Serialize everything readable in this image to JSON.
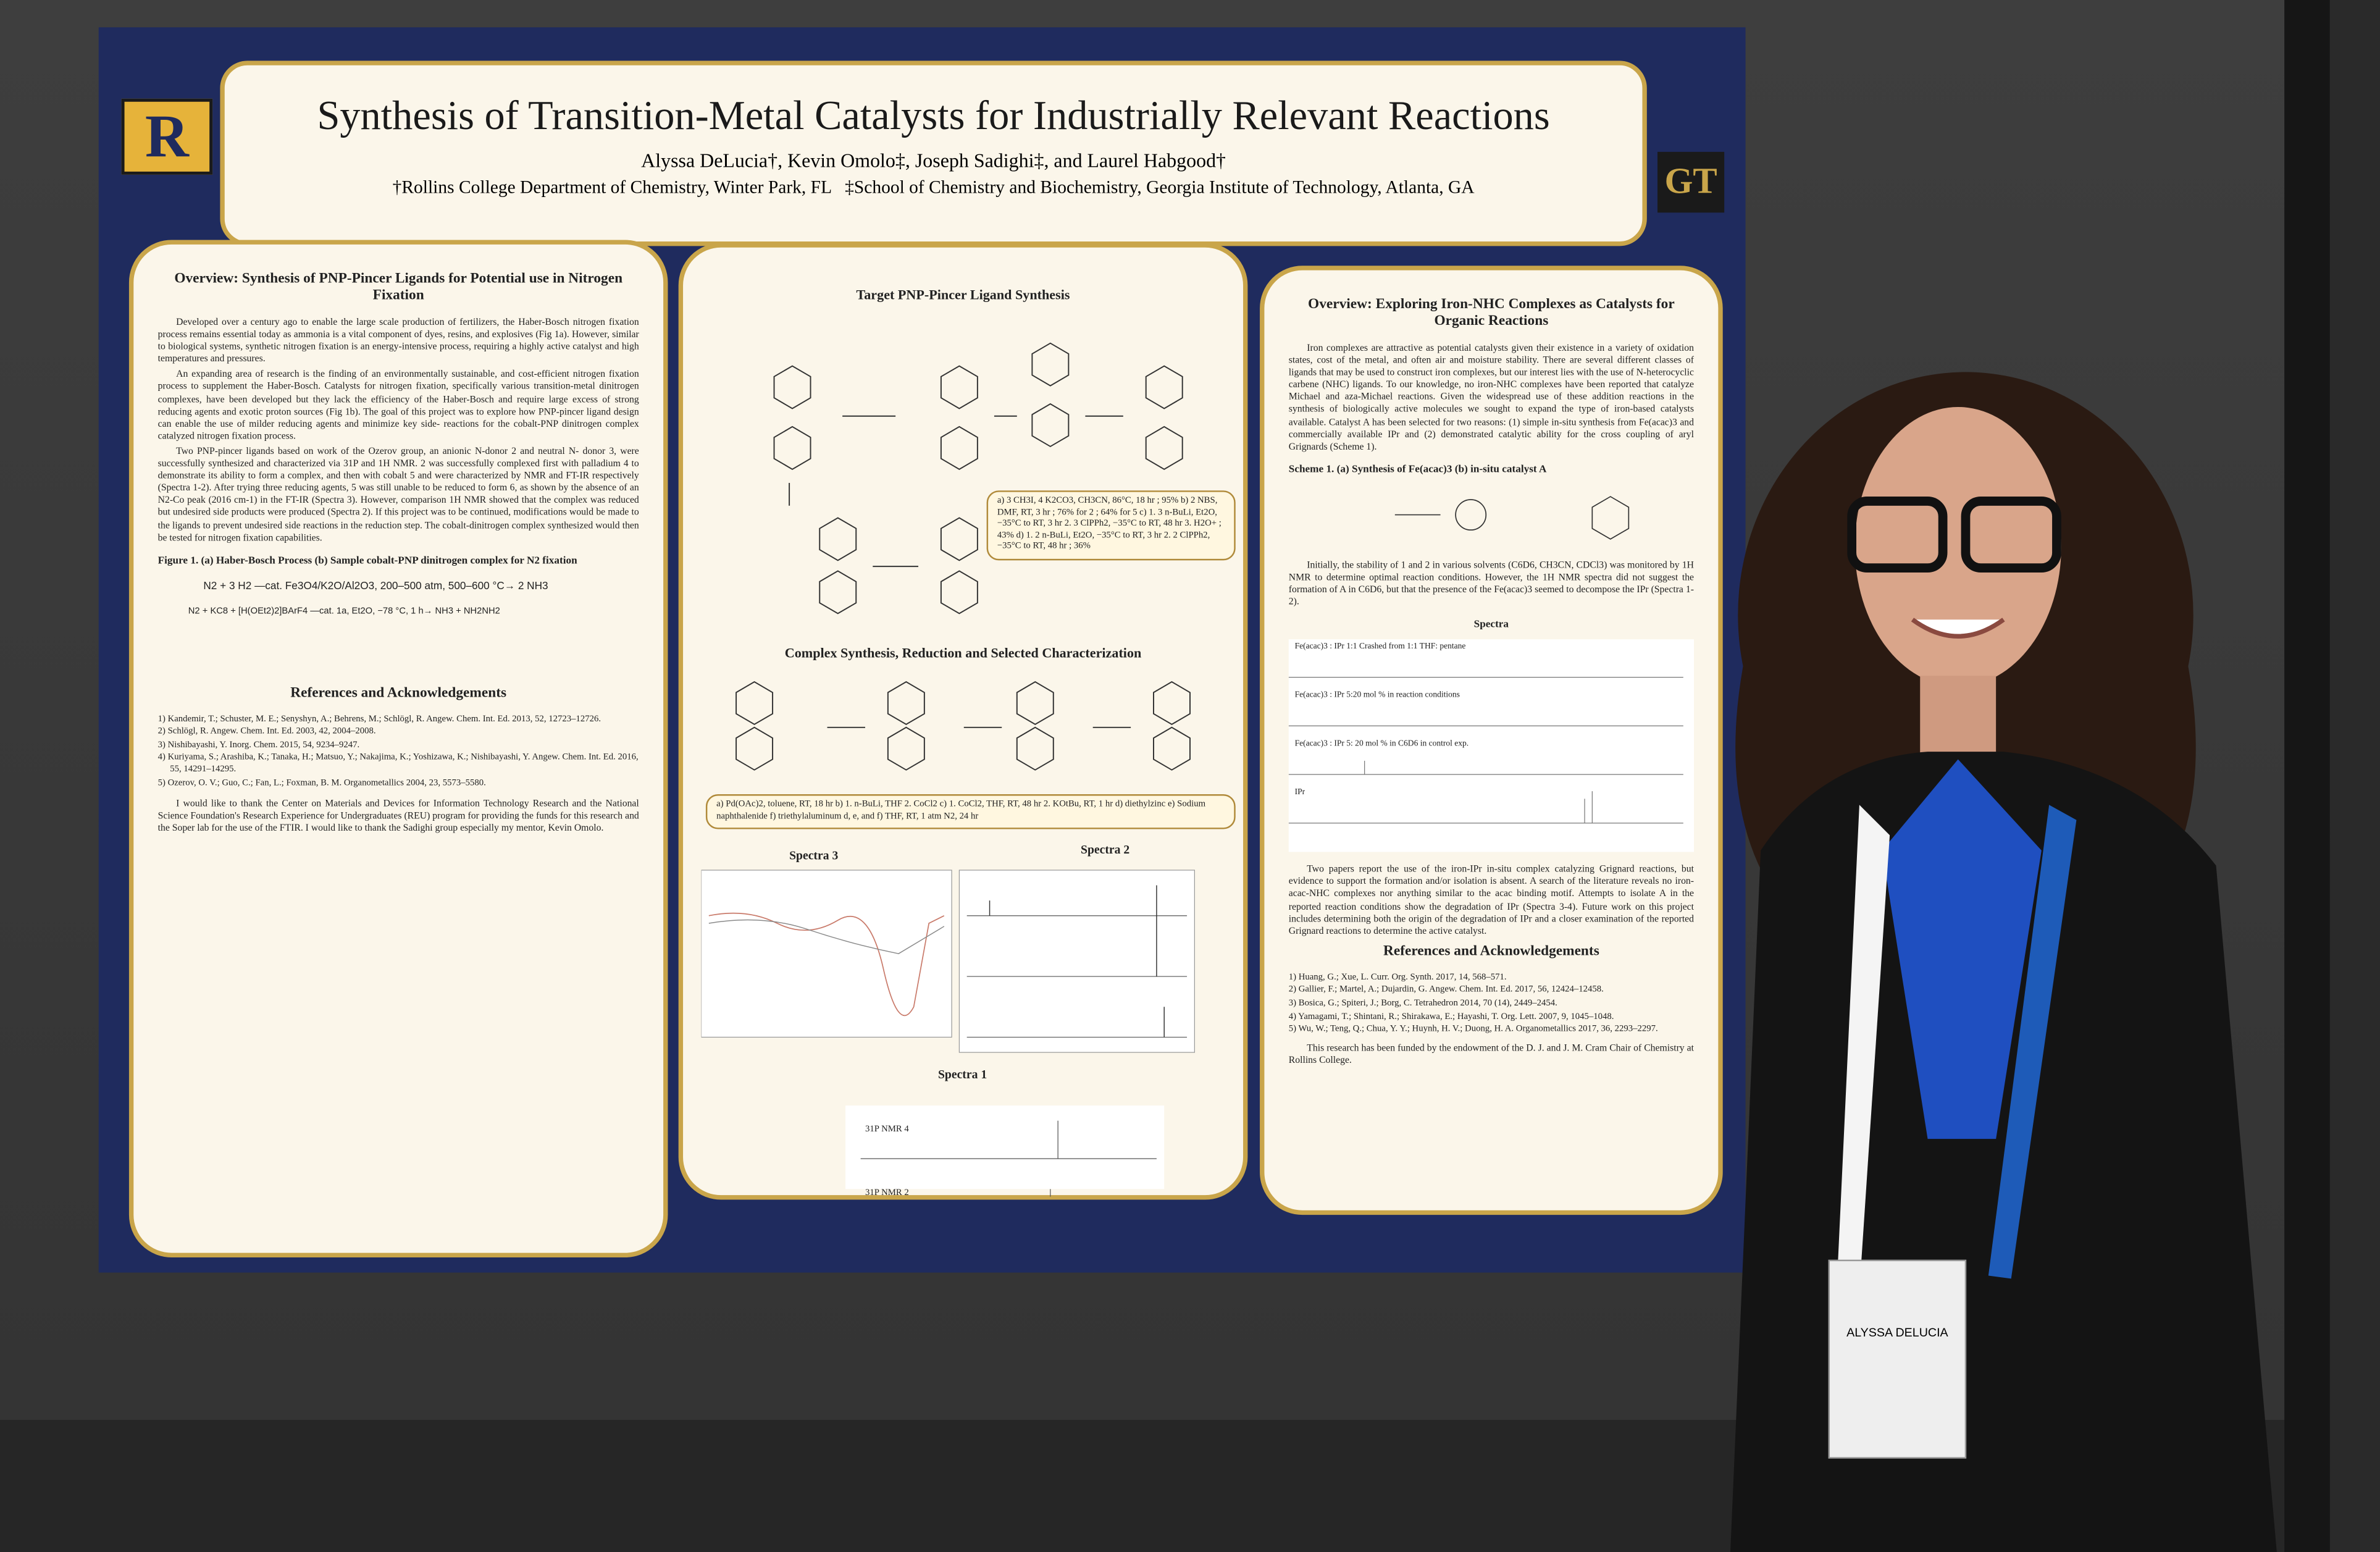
{
  "poster": {
    "title": "Synthesis of Transition-Metal Catalysts for Industrially Relevant Reactions",
    "authors": "Alyssa DeLucia†, Kevin Omolo‡, Joseph Sadighi‡, and Laurel Habgood†",
    "affiliations": "†Rollins College Department of Chemistry, Winter Park, FL   ‡School of Chemistry and Biochemistry, Georgia Institute of Technology, Atlanta, GA",
    "logos": [
      "R",
      "GT"
    ],
    "left": {
      "heading": "Overview: Synthesis of PNP-Pincer Ligands for Potential use in Nitrogen Fixation",
      "paragraphs": [
        "Developed over a century ago to enable the large scale production of fertilizers, the Haber-Bosch nitrogen fixation process remains essential today as ammonia is a vital component of dyes, resins, and explosives (Fig 1a). However, similar to biological systems, synthetic nitrogen fixation is an energy-intensive process, requiring a highly active catalyst and high temperatures and pressures.",
        "An expanding area of research is the finding of an environmentally sustainable, and cost-efficient nitrogen fixation process to supplement the Haber-Bosch. Catalysts for nitrogen fixation, specifically various transition-metal dinitrogen complexes, have been developed but they lack the efficiency of the Haber-Bosch and require large excess of strong reducing agents and exotic proton sources (Fig 1b). The goal of this project was to explore how PNP-pincer ligand design can enable the use of milder reducing agents and minimize key side- reactions for the cobalt-PNP dinitrogen complex catalyzed nitrogen fixation process.",
        "Two PNP-pincer ligands based on work of the Ozerov group, an anionic N-donor 2 and neutral N- donor 3, were successfully synthesized and characterized via 31P and 1H NMR. 2 was successfully complexed first with palladium 4 to demonstrate its ability to form a complex, and then with cobalt 5 and were characterized by NMR and FT-IR respectively (Spectra 1-2). After trying three reducing agents, 5 was still unable to be reduced to form 6, as shown by the absence of an N2-Co peak (2016 cm-1) in the FT-IR (Spectra 3). However, comparison 1H NMR showed that the complex was reduced but undesired side products were produced (Spectra 2). If this project was to be continued, modifications would be made to the ligands to prevent undesired side reactions in the reduction step. The cobalt-dinitrogen complex synthesized would then be tested for nitrogen fixation capabilities."
      ],
      "figure_caption": "Figure 1. (a) Haber-Bosch Process   (b) Sample cobalt-PNP dinitrogen complex for N2 fixation",
      "equation_a": "N2 + 3 H2  —cat. Fe3O4/K2O/Al2O3, 200–500 atm, 500–600 °C→  2 NH3",
      "equation_b": "N2 + KC8 + [H(OEt2)2]BArF4 —cat. 1a, Et2O, −78 °C, 1 h→ NH3 + NH2NH2",
      "references_heading": "References and Acknowledgements",
      "references": [
        "1) Kandemir, T.; Schuster, M. E.; Senyshyn, A.; Behrens, M.; Schlögl, R. Angew. Chem. Int. Ed. 2013, 52, 12723–12726.",
        "2) Schlögl, R. Angew. Chem. Int. Ed. 2003, 42, 2004–2008.",
        "3) Nishibayashi, Y. Inorg. Chem. 2015, 54, 9234–9247.",
        "4) Kuriyama, S.; Arashiba, K.; Tanaka, H.; Matsuo, Y.; Nakajima, K.; Yoshizawa, K.; Nishibayashi, Y. Angew. Chem. Int. Ed. 2016, 55, 14291–14295.",
        "5) Ozerov, O. V.; Guo, C.; Fan, L.; Foxman, B. M. Organometallics 2004, 23, 5573–5580."
      ],
      "acknowledgement": "I would like to thank the Center on Materials and Devices for Information Technology Research and the National Science Foundation's Research Experience for Undergraduates (REU) program for providing the funds for this research and the Soper lab for the use of the FTIR. I would like to thank the Sadighi group especially my mentor, Kevin Omolo."
    },
    "middle": {
      "heading_1": "Target PNP-Pincer Ligand Synthesis",
      "conditions_1": "a) 3 CH3I, 4 K2CO3, CH3CN, 86°C, 18 hr ; 95%  b) 2 NBS, DMF, RT, 3 hr ; 76% for 2 ; 64% for 5  c) 1. 3 n-BuLi, Et2O, −35°C to RT, 3 hr 2. 3 ClPPh2, −35°C to RT, 48 hr 3. H2O+ ; 43%  d) 1. 2 n-BuLi, Et2O, −35°C to RT, 3 hr 2. 2 ClPPh2, −35°C to RT, 48 hr ; 36%",
      "heading_2": "Complex Synthesis, Reduction and Selected Characterization",
      "conditions_2": "a) Pd(OAc)2, toluene, RT, 18 hr  b) 1. n-BuLi, THF 2. CoCl2  c) 1. CoCl2, THF, RT, 48 hr 2. KOtBu, RT, 1 hr  d) diethylzinc  e) Sodium naphthalenide  f) triethylaluminum  d, e, and f) THF, RT, 1 atm N2, 24 hr",
      "spectra_titles": [
        "Spectra 3",
        "Spectra 2",
        "Spectra 1"
      ],
      "spectra_1_labels": [
        "31P NMR 4",
        "31P NMR 2"
      ]
    },
    "right": {
      "heading": "Overview: Exploring Iron-NHC Complexes as Catalysts for Organic Reactions",
      "paragraph_1": "Iron complexes are attractive as potential catalysts given their existence in a variety of oxidation states, cost of the metal, and often air and moisture stability. There are several different classes of ligands that may be used to construct iron complexes, but our interest lies with the use of N-heterocyclic carbene (NHC) ligands. To our knowledge, no iron-NHC complexes have been reported that catalyze Michael and aza-Michael reactions. Given the widespread use of these addition reactions in the synthesis of biologically active molecules we sought to expand the type of iron-based catalysts available. Catalyst A has been selected for two reasons: (1) simple in-situ synthesis from Fe(acac)3 and commercially available IPr and (2) demonstrated catalytic ability for the cross coupling of aryl Grignards (Scheme 1).",
      "scheme_caption": "Scheme 1. (a) Synthesis of Fe(acac)3   (b) in-situ catalyst A",
      "paragraph_2": "Initially, the stability of 1 and 2 in various solvents (C6D6, CH3CN, CDCl3) was monitored by 1H NMR to determine optimal reaction conditions. However, the 1H NMR spectra did not suggest the formation of A in C6D6, but that the presence of the Fe(acac)3 seemed to decompose the IPr (Spectra 1-2).",
      "spectra_title": "Spectra",
      "spectra_labels": [
        "Fe(acac)3 : IPr 1:1 Crashed from 1:1 THF: pentane",
        "Fe(acac)3 : IPr 5:20 mol % in reaction conditions",
        "Fe(acac)3 : IPr 5: 20 mol % in C6D6 in control exp.",
        "IPr"
      ],
      "paragraph_3": "Two papers report the use of the iron-IPr in-situ complex catalyzing Grignard reactions, but evidence to support the formation and/or isolation is absent. A search of the literature reveals no iron-acac-NHC complexes nor anything similar to the acac binding motif. Attempts to isolate A in the reported reaction conditions show the degradation of IPr (Spectra 3-4). Future work on this project includes determining both the origin of the degradation of IPr and a closer examination of the reported Grignard reactions to determine the active catalyst.",
      "references_heading": "References and Acknowledgements",
      "references": [
        "1) Huang, G.; Xue, L. Curr. Org. Synth. 2017, 14, 568–571.",
        "2) Gallier, F.; Martel, A.; Dujardin, G. Angew. Chem. Int. Ed. 2017, 56, 12424–12458.",
        "3) Bosica, G.; Spiteri, J.; Borg, C. Tetrahedron 2014, 70 (14), 2449–2454.",
        "4) Yamagami, T.; Shintani, R.; Shirakawa, E.; Hayashi, T. Org. Lett. 2007, 9, 1045–1048.",
        "5) Wu, W.; Teng, Q.; Chua, Y. Y.; Huynh, H. V.; Duong, H. A. Organometallics 2017, 36, 2293–2297."
      ],
      "funding": "This research has been funded by the endowment of the D. J. and J. M. Cram Chair of Chemistry at Rollins College."
    }
  },
  "badge": {
    "name": "ALYSSA DELUCIA"
  }
}
